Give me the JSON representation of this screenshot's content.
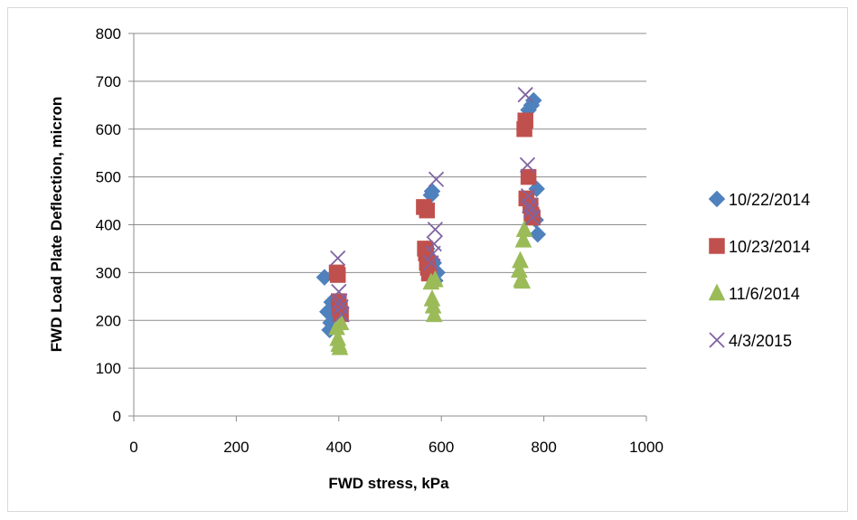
{
  "chart_data": {
    "type": "scatter",
    "title": "",
    "xlabel": "FWD stress, kPa",
    "ylabel": "FWD Load Plate Deflection, micron",
    "xlim": [
      0,
      1000
    ],
    "ylim": [
      0,
      800
    ],
    "x_ticks": [
      "0",
      "200",
      "400",
      "600",
      "800",
      "1000"
    ],
    "y_ticks": [
      "0",
      "100",
      "200",
      "300",
      "400",
      "500",
      "600",
      "700",
      "800"
    ],
    "grid": "horizontal",
    "legend_position": "right",
    "series": [
      {
        "name": "10/22/2014",
        "marker": "diamond",
        "color": "#4f81bd",
        "points": [
          [
            372,
            290
          ],
          [
            378,
            218
          ],
          [
            382,
            180
          ],
          [
            384,
            195
          ],
          [
            386,
            238
          ],
          [
            390,
            222
          ],
          [
            572,
            350
          ],
          [
            576,
            330
          ],
          [
            580,
            462
          ],
          [
            582,
            470
          ],
          [
            585,
            320
          ],
          [
            588,
            283
          ],
          [
            592,
            300
          ],
          [
            770,
            640
          ],
          [
            776,
            650
          ],
          [
            780,
            660
          ],
          [
            784,
            410
          ],
          [
            786,
            475
          ],
          [
            788,
            380
          ]
        ]
      },
      {
        "name": "10/23/2014",
        "marker": "square",
        "color": "#c0504d",
        "points": [
          [
            396,
            300
          ],
          [
            398,
            295
          ],
          [
            400,
            240
          ],
          [
            402,
            225
          ],
          [
            404,
            213
          ],
          [
            566,
            437
          ],
          [
            572,
            430
          ],
          [
            568,
            350
          ],
          [
            570,
            340
          ],
          [
            572,
            320
          ],
          [
            574,
            310
          ],
          [
            576,
            298
          ],
          [
            762,
            600
          ],
          [
            764,
            618
          ],
          [
            766,
            455
          ],
          [
            770,
            500
          ],
          [
            774,
            440
          ],
          [
            776,
            420
          ],
          [
            778,
            415
          ]
        ]
      },
      {
        "name": "11/6/2014",
        "marker": "triangle",
        "color": "#9bbb59",
        "points": [
          [
            396,
            185
          ],
          [
            398,
            162
          ],
          [
            400,
            150
          ],
          [
            402,
            143
          ],
          [
            404,
            195
          ],
          [
            580,
            280
          ],
          [
            582,
            245
          ],
          [
            584,
            230
          ],
          [
            586,
            212
          ],
          [
            588,
            285
          ],
          [
            752,
            305
          ],
          [
            754,
            325
          ],
          [
            756,
            285
          ],
          [
            758,
            282
          ],
          [
            760,
            368
          ],
          [
            762,
            390
          ]
        ]
      },
      {
        "name": "4/3/2015",
        "marker": "x",
        "color": "#8064a2",
        "points": [
          [
            398,
            330
          ],
          [
            400,
            260
          ],
          [
            402,
            240
          ],
          [
            404,
            228
          ],
          [
            406,
            212
          ],
          [
            580,
            320
          ],
          [
            584,
            340
          ],
          [
            586,
            360
          ],
          [
            588,
            390
          ],
          [
            590,
            495
          ],
          [
            764,
            672
          ],
          [
            768,
            525
          ],
          [
            770,
            460
          ],
          [
            772,
            440
          ],
          [
            775,
            430
          ],
          [
            778,
            415
          ]
        ]
      }
    ]
  }
}
